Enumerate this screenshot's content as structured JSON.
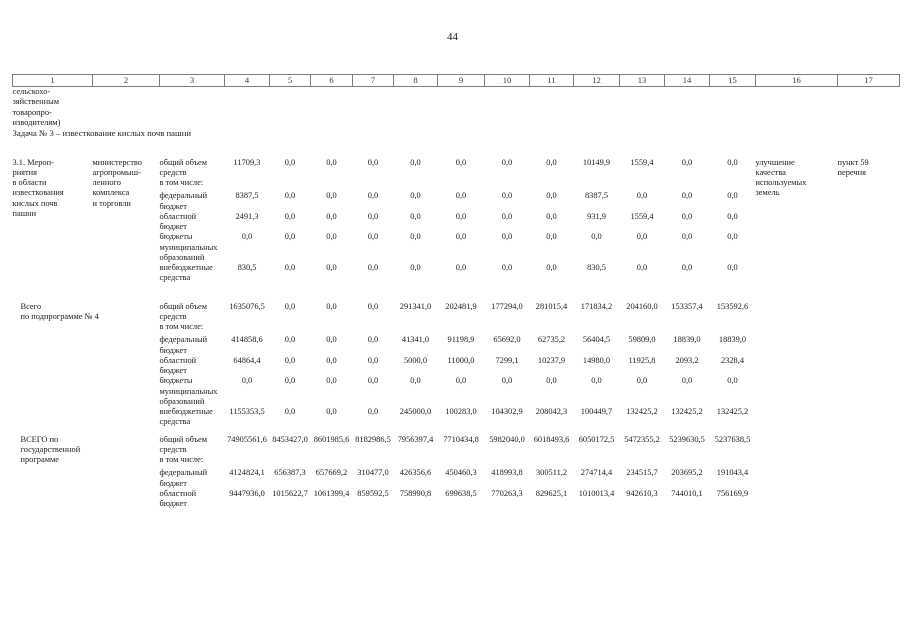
{
  "page": {
    "number": "44"
  },
  "table": {
    "column_numbers": [
      "1",
      "2",
      "3",
      "4",
      "5",
      "6",
      "7",
      "8",
      "9",
      "10",
      "11",
      "12",
      "13",
      "14",
      "15",
      "16",
      "17"
    ],
    "continuation_lines": [
      "сельскохо-",
      "зяйственным",
      "товаропро-",
      "изводителям)"
    ],
    "task_heading": "Задача № 3 – известкование кислых почв пашни",
    "sections": [
      {
        "title_lines": [
          "3.1. Мероп-",
          "риятия",
          "в области",
          "известкования",
          "кислых почв",
          "пашни"
        ],
        "executor_lines": [
          "министерство",
          "агропромыш-",
          "ленного",
          "комплекса",
          "и торговли"
        ],
        "expected_result_lines": [
          "улучшение",
          "качества",
          "используемых",
          "земель"
        ],
        "basis_lines": [
          "пункт 59",
          "перечня"
        ],
        "rows": [
          {
            "label": "общий объем средств",
            "values": [
              "11709,3",
              "0,0",
              "0,0",
              "0,0",
              "0,0",
              "0,0",
              "0,0",
              "0,0",
              "10149,9",
              "1559,4",
              "0,0",
              "0,0"
            ]
          },
          {
            "label": "в том числе:",
            "values": []
          },
          {
            "label": "федеральный бюджет",
            "values": [
              "8387,5",
              "0,0",
              "0,0",
              "0,0",
              "0,0",
              "0,0",
              "0,0",
              "0,0",
              "8387,5",
              "0,0",
              "0,0",
              "0,0"
            ]
          },
          {
            "label": "областной бюджет",
            "values": [
              "2491,3",
              "0,0",
              "0,0",
              "0,0",
              "0,0",
              "0,0",
              "0,0",
              "0,0",
              "931,9",
              "1559,4",
              "0,0",
              "0,0"
            ]
          },
          {
            "label": "бюджеты муниципальных образований",
            "values": [
              "0,0",
              "0,0",
              "0,0",
              "0,0",
              "0,0",
              "0,0",
              "0,0",
              "0,0",
              "0,0",
              "0,0",
              "0,0",
              "0,0"
            ]
          },
          {
            "label": "внебюджетные средства",
            "values": [
              "830,5",
              "0,0",
              "0,0",
              "0,0",
              "0,0",
              "0,0",
              "0,0",
              "0,0",
              "830,5",
              "0,0",
              "0,0",
              "0,0"
            ]
          }
        ]
      },
      {
        "title_lines": [
          "Всего",
          "по подпрограмме № 4"
        ],
        "rows": [
          {
            "label": "общий объем средств",
            "values": [
              "1635076,5",
              "0,0",
              "0,0",
              "0,0",
              "291341,0",
              "202481,9",
              "177294,0",
              "281015,4",
              "171834,2",
              "204160,0",
              "153357,4",
              "153592,6"
            ]
          },
          {
            "label": "в том числе:",
            "values": []
          },
          {
            "label": "федеральный бюджет",
            "values": [
              "414858,6",
              "0,0",
              "0,0",
              "0,0",
              "41341,0",
              "91198,9",
              "65692,0",
              "62735,2",
              "56404,5",
              "59809,0",
              "18839,0",
              "18839,0"
            ]
          },
          {
            "label": "областной бюджет",
            "values": [
              "64864,4",
              "0,0",
              "0,0",
              "0,0",
              "5000,0",
              "11000,0",
              "7299,1",
              "10237,9",
              "14980,0",
              "11925,8",
              "2093,2",
              "2328,4"
            ]
          },
          {
            "label": "бюджеты муниципальных образований",
            "values": [
              "0,0",
              "0,0",
              "0,0",
              "0,0",
              "0,0",
              "0,0",
              "0,0",
              "0,0",
              "0,0",
              "0,0",
              "0,0",
              "0,0"
            ]
          },
          {
            "label": "внебюджетные средства",
            "values": [
              "1155353,5",
              "0,0",
              "0,0",
              "0,0",
              "245000,0",
              "100283,0",
              "104302,9",
              "208042,3",
              "100449,7",
              "132425,2",
              "132425,2",
              "132425,2"
            ]
          }
        ]
      },
      {
        "title_lines": [
          "ВСЕГО по",
          "государственной",
          "программе"
        ],
        "rows": [
          {
            "label": "общий объем средств",
            "values": [
              "74905561,6",
              "8453427,0",
              "8601985,6",
              "8182986,5",
              "7956397,4",
              "7710434,8",
              "5982040,0",
              "6018493,6",
              "6050172,5",
              "5472355,2",
              "5239630,5",
              "5237638,5"
            ]
          },
          {
            "label": "в том числе:",
            "values": []
          },
          {
            "label": "федеральный бюджет",
            "values": [
              "4124824,1",
              "656387,3",
              "657669,2",
              "310477,0",
              "426356,6",
              "450460,3",
              "418993,8",
              "300511,2",
              "274714,4",
              "234515,7",
              "203695,2",
              "191043,4"
            ]
          },
          {
            "label": "областной бюджет",
            "values": [
              "9447936,0",
              "1015622,7",
              "1061399,4",
              "859592,5",
              "758990,8",
              "699638,5",
              "770263,3",
              "829625,1",
              "1010013,4",
              "942610,3",
              "744010,1",
              "756169,9"
            ]
          }
        ]
      }
    ]
  }
}
